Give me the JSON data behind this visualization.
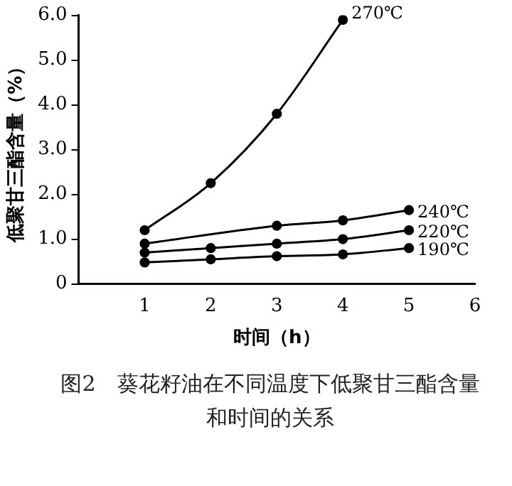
{
  "chart_data": {
    "type": "line",
    "xlabel": "时间（h）",
    "ylabel": "低聚甘三酯含量（%）",
    "xlim": [
      0,
      6
    ],
    "xticks": [
      1,
      2,
      3,
      4,
      5,
      6
    ],
    "ylim": [
      0,
      6
    ],
    "yticks": [
      0,
      {
        "value": 1,
        "label": "1.0"
      },
      {
        "value": 2,
        "label": "2.0"
      },
      {
        "value": 3,
        "label": "3.0"
      },
      {
        "value": 4,
        "label": "4.0"
      },
      {
        "value": 5,
        "label": "5.0"
      },
      {
        "value": 6,
        "label": "6.0"
      }
    ],
    "series": [
      {
        "name": "270℃",
        "color": "#000000",
        "x": [
          1,
          2,
          3,
          4
        ],
        "values": [
          1.2,
          2.25,
          3.8,
          5.9
        ]
      },
      {
        "name": "240℃",
        "color": "#000000",
        "x": [
          1,
          3,
          4,
          5
        ],
        "values": [
          0.9,
          1.3,
          1.42,
          1.65
        ]
      },
      {
        "name": "220℃",
        "color": "#000000",
        "x": [
          1,
          2,
          3,
          4,
          5
        ],
        "values": [
          0.7,
          0.8,
          0.9,
          1.0,
          1.2
        ]
      },
      {
        "name": "190℃",
        "color": "#000000",
        "x": [
          1,
          2,
          3,
          4,
          5
        ],
        "values": [
          0.48,
          0.55,
          0.62,
          0.66,
          0.8
        ]
      }
    ],
    "marker": "circle",
    "line_style": "solid",
    "grid": false,
    "legend": false,
    "annotations": [
      "图2　葵花籽油在不同温度下低聚甘三酯含量和时间的关系"
    ]
  }
}
